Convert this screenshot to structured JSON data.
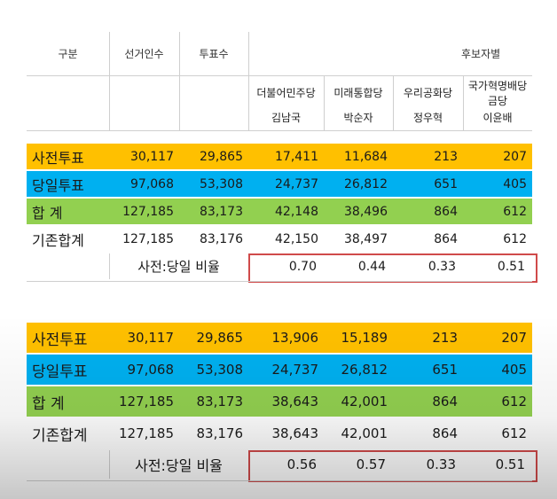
{
  "header": {
    "col_gubun": "구분",
    "col_voters": "선거인수",
    "col_votes": "투표수",
    "col_candidates": "후보자별",
    "parties": [
      {
        "party": "더불어민주당",
        "candidate": "김남국"
      },
      {
        "party": "미래통합당",
        "candidate": "박순자"
      },
      {
        "party": "우리공화당",
        "candidate": "정우혁"
      },
      {
        "party": "국가혁명배당\n금당",
        "party_line1": "국가혁명배당",
        "party_line2": "금당",
        "candidate": "이윤배"
      }
    ]
  },
  "colors": {
    "early": "#ffc000",
    "election_day": "#00b0f0",
    "total": "#92d050",
    "ratio_box": "#d04a4a"
  },
  "table1": {
    "rows": [
      {
        "label": "사전투표",
        "values": [
          "30,117",
          "29,865",
          "17,411",
          "11,684",
          "213",
          "207"
        ]
      },
      {
        "label": "당일투표",
        "values": [
          "97,068",
          "53,308",
          "24,737",
          "26,812",
          "651",
          "405"
        ]
      },
      {
        "label": "합   계",
        "values": [
          "127,185",
          "83,173",
          "42,148",
          "38,496",
          "864",
          "612"
        ]
      },
      {
        "label": "기존합계",
        "values": [
          "127,185",
          "83,176",
          "42,150",
          "38,497",
          "864",
          "612"
        ]
      }
    ],
    "ratio_label": "사전:당일 비율",
    "ratios": [
      "0.70",
      "0.44",
      "0.33",
      "0.51"
    ]
  },
  "table2": {
    "rows": [
      {
        "label": "사전투표",
        "values": [
          "30,117",
          "29,865",
          "13,906",
          "15,189",
          "213",
          "207"
        ]
      },
      {
        "label": "당일투표",
        "values": [
          "97,068",
          "53,308",
          "24,737",
          "26,812",
          "651",
          "405"
        ]
      },
      {
        "label": "합   계",
        "values": [
          "127,185",
          "83,173",
          "38,643",
          "42,001",
          "864",
          "612"
        ]
      },
      {
        "label": "기존합계",
        "values": [
          "127,185",
          "83,176",
          "38,643",
          "42,001",
          "864",
          "612"
        ]
      }
    ],
    "ratio_label": "사전:당일 비율",
    "ratios": [
      "0.56",
      "0.57",
      "0.33",
      "0.51"
    ]
  }
}
